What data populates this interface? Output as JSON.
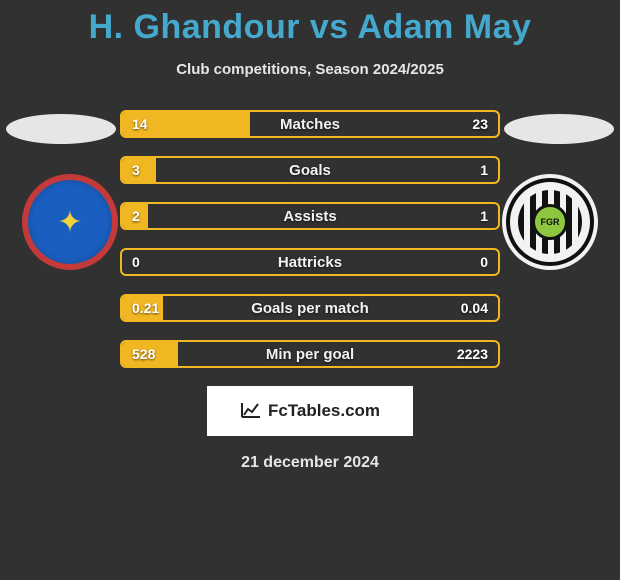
{
  "title": "H. Ghandour vs Adam May",
  "subtitle": "Club competitions, Season 2024/2025",
  "date": "21 december 2024",
  "attribution_text": "FcTables.com",
  "crest_right_label": "FGR",
  "stats": {
    "bar_border_color": "#f0b722",
    "bar_fill_color": "#f0b722",
    "rows": [
      {
        "label": "Matches",
        "left": "14",
        "right": "23",
        "left_pct": 34,
        "right_pct": 0
      },
      {
        "label": "Goals",
        "left": "3",
        "right": "1",
        "left_pct": 9,
        "right_pct": 0
      },
      {
        "label": "Assists",
        "left": "2",
        "right": "1",
        "left_pct": 7,
        "right_pct": 0
      },
      {
        "label": "Hattricks",
        "left": "0",
        "right": "0",
        "left_pct": 0,
        "right_pct": 0
      },
      {
        "label": "Goals per match",
        "left": "0.21",
        "right": "0.04",
        "left_pct": 11,
        "right_pct": 0
      },
      {
        "label": "Min per goal",
        "left": "528",
        "right": "2223",
        "left_pct": 15,
        "right_pct": 0
      }
    ]
  },
  "colors": {
    "background": "#313131",
    "title": "#44a9cc",
    "crest_left_fill": "#1a5fbf",
    "crest_left_border": "#c43a3a",
    "crest_right_accent": "#8fc63f"
  }
}
